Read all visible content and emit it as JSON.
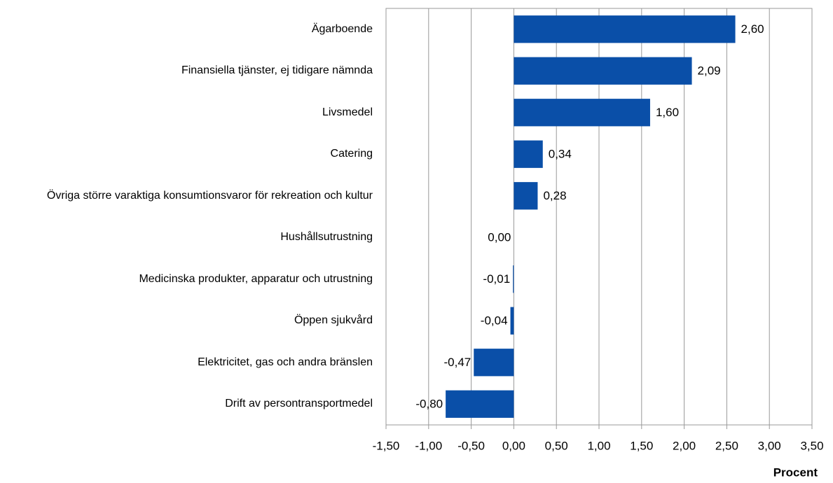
{
  "chart_data": {
    "type": "hbar",
    "x_label": "Procent",
    "categories": [
      "Ägarboende",
      "Finansiella tjänster, ej tidigare nämnda",
      "Livsmedel",
      "Catering",
      "Övriga större varaktiga konsumtionsvaror för rekreation och kultur",
      "Hushållsutrustning",
      "Medicinska produkter, apparatur och utrustning",
      "Öppen sjukvård",
      "Elektricitet, gas och andra bränslen",
      "Drift av persontransportmedel"
    ],
    "values": [
      2.6,
      2.09,
      1.6,
      0.34,
      0.28,
      0.0,
      -0.01,
      -0.04,
      -0.47,
      -0.8
    ],
    "value_labels": [
      "2,60",
      "2,09",
      "1,60",
      "0,34",
      "0,28",
      "0,00",
      "-0,01",
      "-0,04",
      "-0,47",
      "-0,80"
    ],
    "color": "#0a4fa8",
    "xlim": [
      -1.5,
      3.5
    ],
    "xticks": [
      {
        "value": -1.5,
        "label": "-1,50"
      },
      {
        "value": -1.0,
        "label": "-1,00"
      },
      {
        "value": -0.5,
        "label": "-0,50"
      },
      {
        "value": 0,
        "label": "0,00"
      },
      {
        "value": 0.5,
        "label": "0,50"
      },
      {
        "value": 1.0,
        "label": "1,00"
      },
      {
        "value": 1.5,
        "label": "1,50"
      },
      {
        "value": 2.0,
        "label": "2,00"
      },
      {
        "value": 2.5,
        "label": "2,50"
      },
      {
        "value": 3.0,
        "label": "3,00"
      },
      {
        "value": 3.5,
        "label": "3,50"
      }
    ],
    "grid": true
  }
}
